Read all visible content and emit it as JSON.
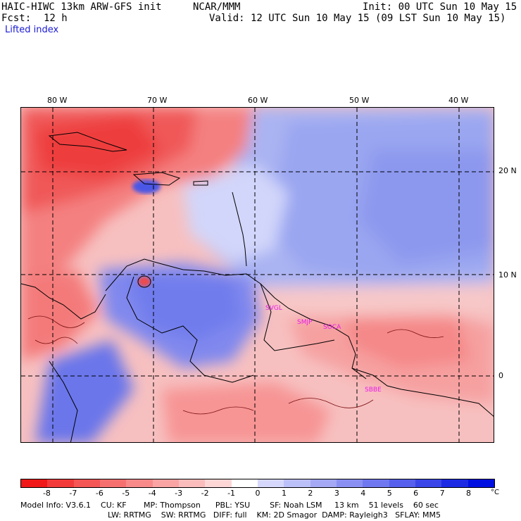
{
  "header": {
    "model": "HAIC-HIWC 13km ARW-GFS init",
    "org": "NCAR/MMM",
    "init": "Init: 00 UTC Sun 10 May 15",
    "fcst_label": "Fcst:",
    "fcst_value": "12 h",
    "valid": "Valid: 12 UTC Sun 10 May 15 (09 LST Sun 10 May 15)",
    "field": "Lifted index"
  },
  "map": {
    "lon_labels": [
      "80 W",
      "70 W",
      "60 W",
      "50 W",
      "40 W"
    ],
    "lat_labels": [
      "20 N",
      "10 N",
      "0"
    ],
    "cities": [
      "SVGL",
      "SMJP",
      "SOCA",
      "SBBE"
    ]
  },
  "colorbar": {
    "ticks": [
      "-8",
      "-7",
      "-6",
      "-5",
      "-4",
      "-3",
      "-2",
      "-1",
      "0",
      "1",
      "2",
      "3",
      "4",
      "5",
      "6",
      "7",
      "8"
    ],
    "unit": "°C",
    "colors": [
      "#f01818",
      "#f33a3a",
      "#f55656",
      "#f77070",
      "#f88a8a",
      "#faa4a4",
      "#fbbcbc",
      "#fdd6d6",
      "#ffffff",
      "#d6d8fb",
      "#bcc0f8",
      "#a4a8f5",
      "#8a90f2",
      "#7078ef",
      "#5660ec",
      "#3a46e8",
      "#1c2ae4",
      "#0010e0"
    ]
  },
  "footer": {
    "line1": "Model Info: V3.6.1    CU: KF       MP: Thompson      PBL: YSU        SF: Noah LSM     13 km    51 levels    60 sec",
    "line2": "LW: RRTMG    SW: RRTMG   DIFF: full    KM: 2D Smagor  DAMP: Rayleigh3   SFLAY: MM5"
  }
}
